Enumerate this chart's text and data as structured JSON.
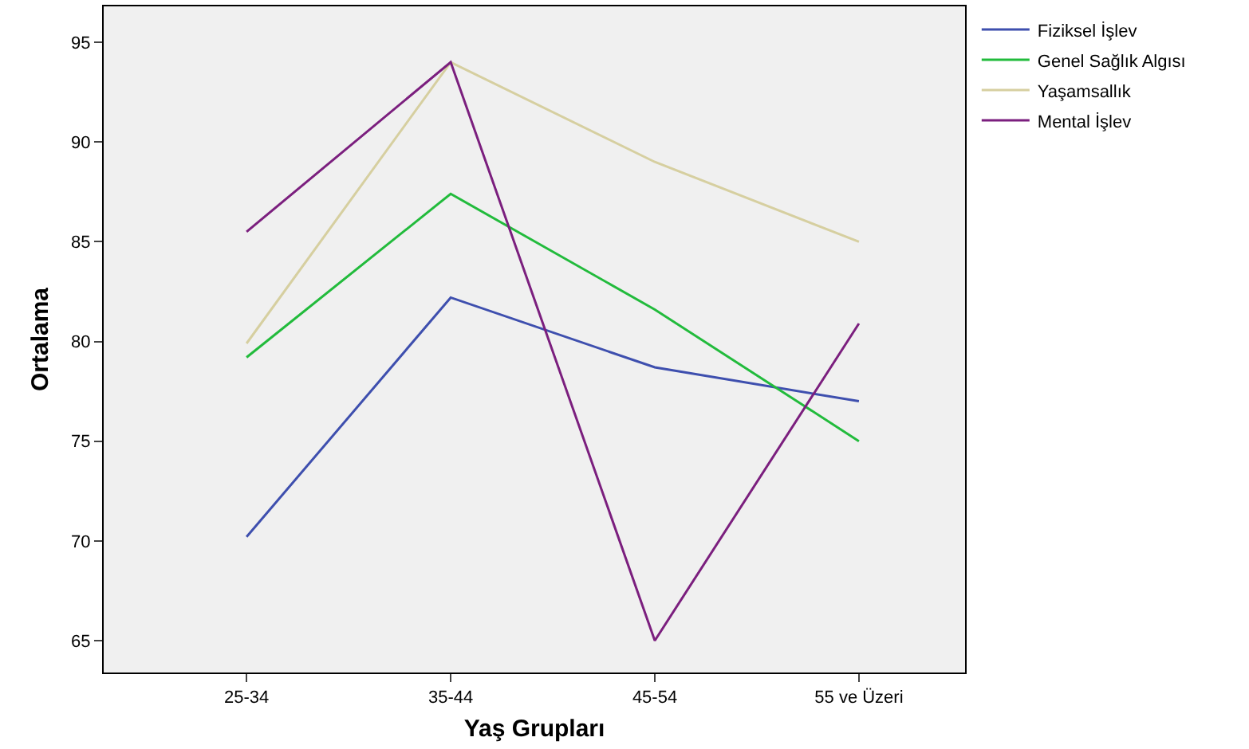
{
  "chart_data": {
    "type": "line",
    "xlabel": "Yaş Grupları",
    "ylabel": "Ortalama",
    "categories": [
      "25-34",
      "35-44",
      "45-54",
      "55 ve Üzeri"
    ],
    "series": [
      {
        "name": "Fiziksel İşlev",
        "color": "#3e4fae",
        "values": [
          70.2,
          82.2,
          78.7,
          77.0
        ]
      },
      {
        "name": "Genel Sağlık Algısı",
        "color": "#22bb3c",
        "values": [
          79.2,
          87.4,
          81.6,
          75.0
        ]
      },
      {
        "name": "Yaşamsallık",
        "color": "#d6cfa0",
        "values": [
          79.9,
          94.0,
          89.0,
          85.0
        ]
      },
      {
        "name": "Mental İşlev",
        "color": "#7b1f7e",
        "values": [
          85.5,
          94.0,
          65.0,
          80.9
        ]
      }
    ],
    "ylim": [
      63.4,
      96.8
    ],
    "yticks": [
      65,
      70,
      75,
      80,
      85,
      90,
      95
    ],
    "grid": false,
    "legend": "top right",
    "marker": "none",
    "line_style": "solid"
  }
}
